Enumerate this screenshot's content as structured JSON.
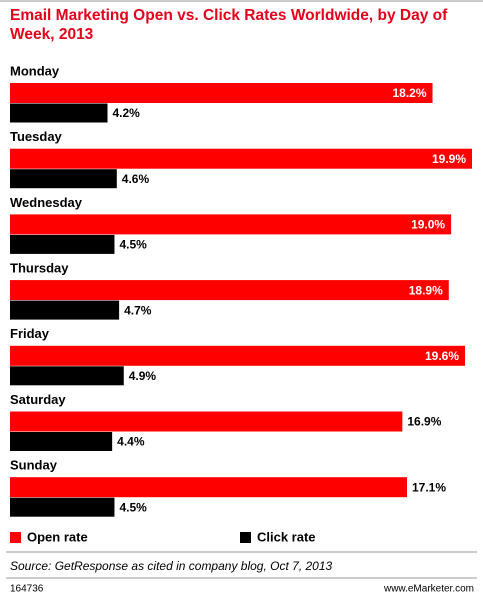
{
  "chart_data": {
    "type": "bar",
    "orientation": "horizontal",
    "title": "Email Marketing Open vs. Click Rates Worldwide, by Day of Week, 2013",
    "categories": [
      "Monday",
      "Tuesday",
      "Wednesday",
      "Thursday",
      "Friday",
      "Saturday",
      "Sunday"
    ],
    "series": [
      {
        "name": "Open rate",
        "color": "#ff0000",
        "values": [
          18.2,
          19.9,
          19.0,
          18.9,
          19.6,
          16.9,
          17.1
        ],
        "value_labels": [
          "18.2%",
          "19.9%",
          "19.0%",
          "18.9%",
          "19.6%",
          "16.9%",
          "17.1%"
        ]
      },
      {
        "name": "Click rate",
        "color": "#000000",
        "values": [
          4.2,
          4.6,
          4.5,
          4.7,
          4.9,
          4.4,
          4.5
        ],
        "value_labels": [
          "4.2%",
          "4.6%",
          "4.5%",
          "4.7%",
          "4.9%",
          "4.4%",
          "4.5%"
        ]
      }
    ],
    "source": "Source: GetResponse as cited in company blog, Oct 7, 2013",
    "chart_id": "164736",
    "website": "www.eMarketer.com"
  }
}
